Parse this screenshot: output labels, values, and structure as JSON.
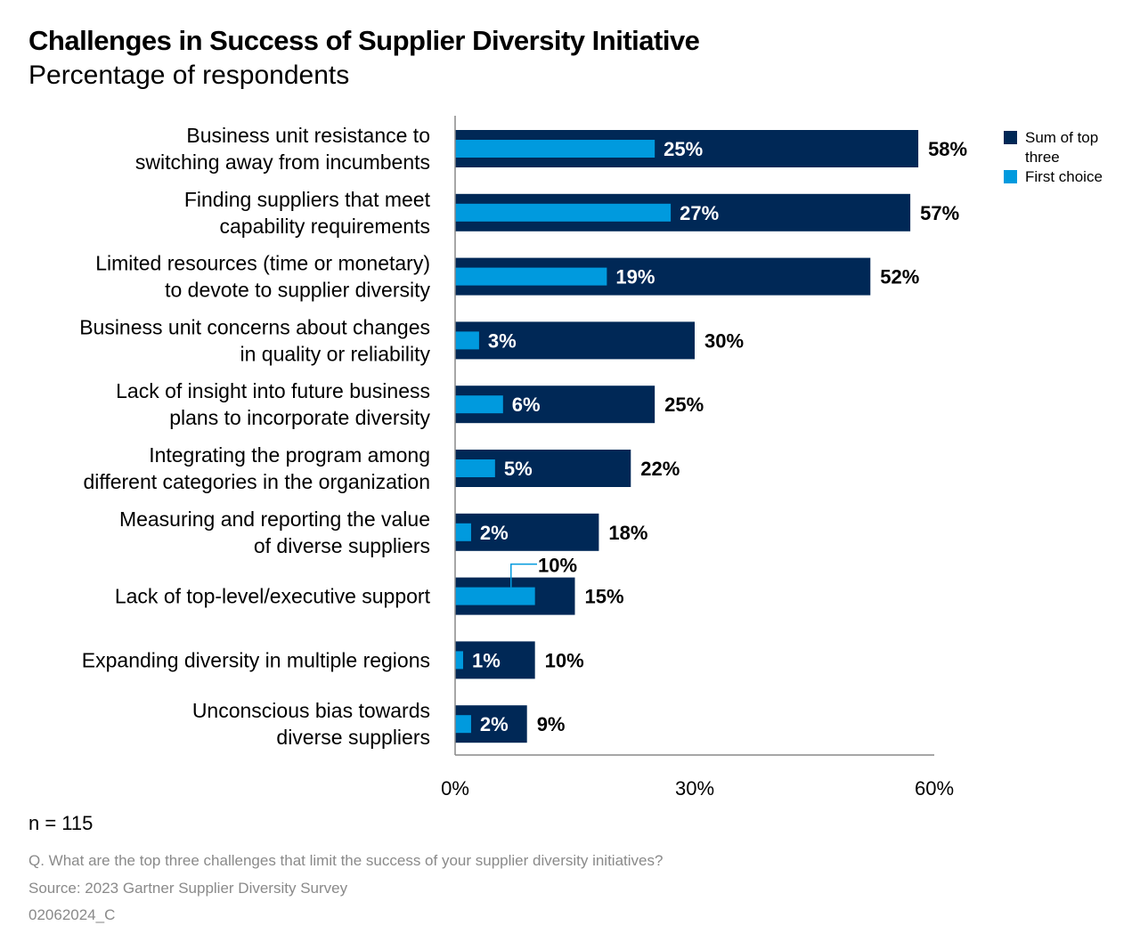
{
  "title": "Challenges in Success of Supplier Diversity Initiative",
  "subtitle": "Percentage of respondents",
  "n_label": "n = 115",
  "question": "Q. What are the top three challenges that limit the success of your supplier diversity initiatives?",
  "source": "Source: 2023 Gartner Supplier Diversity Survey",
  "code": "02062024_C",
  "colors": {
    "sum_of_top_three": "#002856",
    "first_choice": "#009ADE"
  },
  "chart_data": {
    "type": "bar",
    "orientation": "horizontal",
    "categories": [
      [
        "Business unit resistance to",
        "switching away from incumbents"
      ],
      [
        "Finding suppliers that meet",
        "capability requirements"
      ],
      [
        "Limited resources (time or monetary)",
        "to devote to supplier diversity"
      ],
      [
        "Business unit concerns about changes",
        "in quality or reliability"
      ],
      [
        "Lack of insight into future business",
        "plans to incorporate diversity"
      ],
      [
        "Integrating the program among",
        "different categories in the organization"
      ],
      [
        "Measuring and reporting the value",
        "of diverse suppliers"
      ],
      [
        "Lack of top-level/executive support"
      ],
      [
        "Expanding diversity in multiple regions"
      ],
      [
        "Unconscious bias towards",
        "diverse suppliers"
      ]
    ],
    "series": [
      {
        "name": "Sum of top three",
        "values": [
          58,
          57,
          52,
          30,
          25,
          22,
          18,
          15,
          10,
          9
        ],
        "labels": [
          "58%",
          "57%",
          "52%",
          "30%",
          "25%",
          "22%",
          "18%",
          "15%",
          "10%",
          "9%"
        ]
      },
      {
        "name": "First choice",
        "values": [
          25,
          27,
          19,
          3,
          6,
          5,
          2,
          10,
          1,
          2
        ],
        "labels": [
          "25%",
          "27%",
          "19%",
          "3%",
          "6%",
          "5%",
          "2%",
          "10%",
          "1%",
          "2%"
        ]
      }
    ],
    "xlim": [
      0,
      60
    ],
    "xticks": [
      "0%",
      "30%",
      "60%"
    ],
    "xtick_values": [
      0,
      30,
      60
    ],
    "grid": false,
    "legend": "top-right",
    "legend_entries": [
      [
        "Sum of top",
        "three"
      ],
      [
        "First choice"
      ]
    ]
  }
}
